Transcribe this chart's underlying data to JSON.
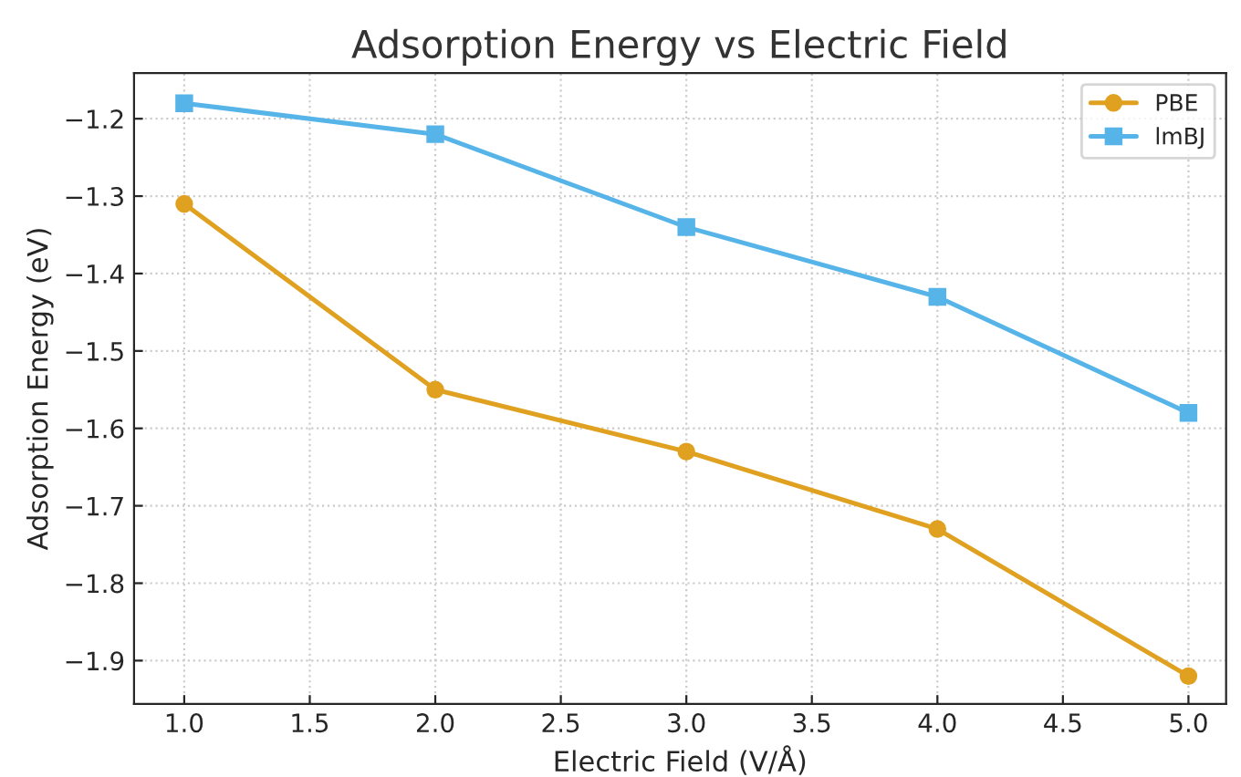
{
  "chart_data": {
    "type": "line",
    "title": "Adsorption Energy vs Electric Field",
    "xlabel": "Electric Field (V/Å)",
    "ylabel": "Adsorption Energy (eV)",
    "x": [
      1.0,
      2.0,
      3.0,
      4.0,
      5.0
    ],
    "series": [
      {
        "name": "PBE",
        "color": "#e0a020",
        "values": [
          -1.31,
          -1.55,
          -1.63,
          -1.73,
          -1.92
        ],
        "marker": "circle"
      },
      {
        "name": "lmBJ",
        "color": "#56b4e9",
        "values": [
          -1.18,
          -1.22,
          -1.34,
          -1.43,
          -1.58
        ],
        "marker": "square"
      }
    ],
    "xlim": [
      0.8,
      5.15
    ],
    "xticks": [
      {
        "value": 1.0,
        "label": "1.0"
      },
      {
        "value": 1.5,
        "label": "1.5"
      },
      {
        "value": 2.0,
        "label": "2.0"
      },
      {
        "value": 2.5,
        "label": "2.5"
      },
      {
        "value": 3.0,
        "label": "3.0"
      },
      {
        "value": 3.5,
        "label": "3.5"
      },
      {
        "value": 4.0,
        "label": "4.0"
      },
      {
        "value": 4.5,
        "label": "4.5"
      },
      {
        "value": 5.0,
        "label": "5.0"
      }
    ],
    "ylim": [
      -1.956,
      -1.141
    ],
    "yticks": [
      -1.9,
      -1.8,
      -1.7,
      -1.6,
      -1.5,
      -1.4,
      -1.3,
      -1.2
    ],
    "grid": true,
    "legend": "top right",
    "line_style": "solid"
  }
}
